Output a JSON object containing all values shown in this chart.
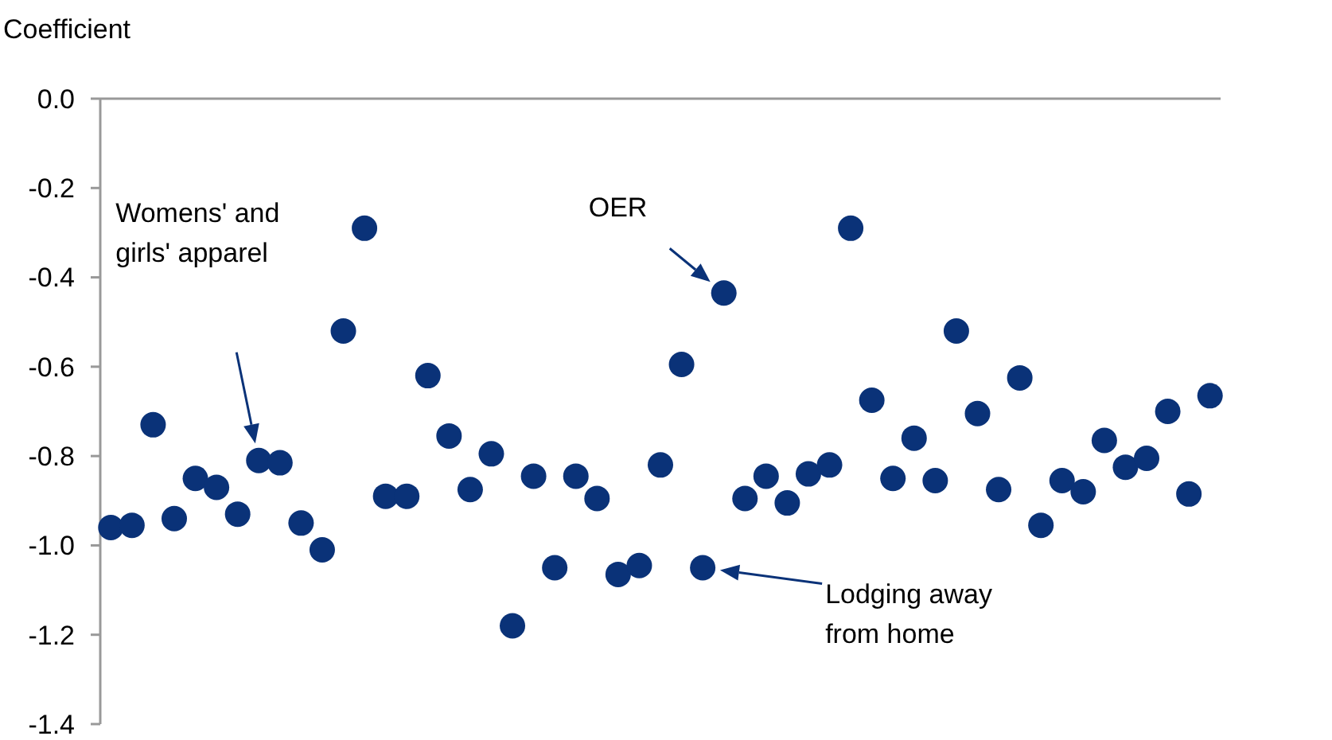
{
  "chart_data": {
    "type": "scatter",
    "ylabel": "Coefficient",
    "color": "#0a3278",
    "marker": "circle",
    "categories": [
      null,
      null,
      null,
      null,
      null,
      null,
      null,
      null,
      null,
      null,
      null,
      null,
      null,
      null,
      null,
      null,
      null,
      null,
      null,
      null,
      null,
      null,
      null,
      null,
      null,
      null,
      null,
      null,
      null,
      null,
      null,
      null,
      null,
      null,
      null,
      null,
      null,
      null,
      null,
      null,
      null,
      null,
      null,
      null,
      null,
      null,
      null,
      null,
      null,
      null,
      null,
      null,
      null
    ],
    "values": [
      -0.96,
      -0.955,
      -0.73,
      -0.94,
      -0.85,
      -0.87,
      -0.93,
      -0.81,
      -0.815,
      -0.95,
      -1.01,
      -0.52,
      -0.29,
      -0.89,
      -0.89,
      -0.62,
      -0.755,
      -0.875,
      -0.795,
      -1.18,
      -0.845,
      -1.05,
      -0.845,
      -0.895,
      -1.065,
      -1.045,
      -0.82,
      -0.595,
      -1.05,
      -0.435,
      -0.895,
      -0.845,
      -0.905,
      -0.84,
      -0.82,
      -0.29,
      -0.675,
      -0.85,
      -0.76,
      -0.855,
      -0.52,
      -0.705,
      -0.875,
      -0.625,
      -0.955,
      -0.855,
      -0.88,
      -0.765,
      -0.825,
      -0.805,
      -0.7,
      -0.885,
      -0.665
    ],
    "ylim": [
      -1.4,
      0
    ],
    "yticks": [
      {
        "value": -1.4,
        "label": "-1.4"
      },
      {
        "value": -1.2,
        "label": "-1.2"
      },
      {
        "value": -1,
        "label": "-1.0"
      },
      {
        "value": -0.8,
        "label": "-0.8"
      },
      {
        "value": -0.6,
        "label": "-0.6"
      },
      {
        "value": -0.4,
        "label": "-0.4"
      },
      {
        "value": -0.2,
        "label": "-0.2"
      },
      {
        "value": 0,
        "label": "0.0"
      }
    ],
    "grid": false,
    "annotations": [
      "Womens' and\ngirls' apparel",
      "OER",
      "Lodging away\nfrom home"
    ]
  }
}
